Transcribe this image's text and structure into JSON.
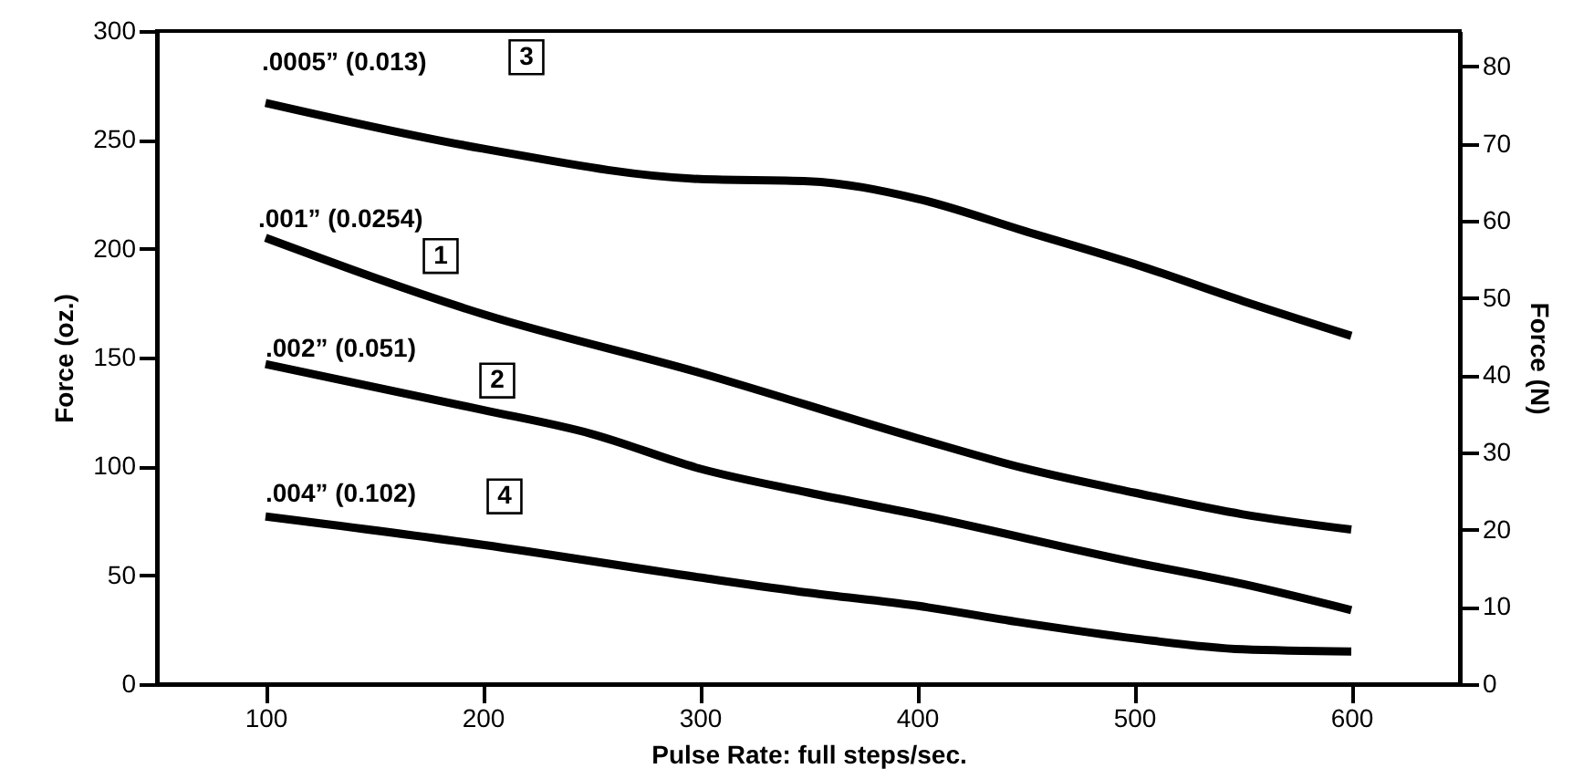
{
  "chart_data": {
    "type": "line",
    "xlabel": "Pulse Rate: full steps/sec.",
    "ylabel": "Force (oz.)",
    "y2label": "Force (N)",
    "xlim": [
      50,
      650
    ],
    "xticks": [
      100,
      200,
      300,
      400,
      500,
      600
    ],
    "ylim": [
      0,
      300
    ],
    "yticks": [
      0,
      50,
      100,
      150,
      200,
      250,
      300
    ],
    "y2lim": [
      0,
      84.6
    ],
    "y2ticks": [
      0,
      10,
      20,
      30,
      40,
      50,
      60,
      70,
      80
    ],
    "grid": false,
    "line_style": "solid",
    "series": [
      {
        "name": ".0005” (0.013)",
        "color": "#000000",
        "x": [
          100,
          200,
          300,
          350,
          400,
          450,
          500,
          550,
          600
        ],
        "values": [
          267,
          246,
          232,
          231,
          223,
          208,
          193,
          176,
          160
        ]
      },
      {
        "name": ".001” (0.0254)",
        "color": "#000000",
        "x": [
          100,
          200,
          300,
          400,
          450,
          500,
          550,
          600
        ],
        "values": [
          205,
          170,
          143,
          113,
          99,
          88,
          78,
          71
        ]
      },
      {
        "name": ".002” (0.051)",
        "color": "#000000",
        "x": [
          100,
          200,
          250,
          300,
          350,
          400,
          500,
          550,
          600
        ],
        "values": [
          147,
          126,
          115,
          99,
          88,
          78,
          56,
          46,
          34
        ]
      },
      {
        "name": ".004” (0.102)",
        "color": "#000000",
        "x": [
          100,
          200,
          300,
          350,
          400,
          450,
          500,
          550,
          600
        ],
        "values": [
          77,
          64,
          49,
          42,
          36,
          28,
          21,
          16,
          15
        ]
      }
    ],
    "annotations": [
      "3",
      "1",
      "2",
      "4"
    ]
  }
}
